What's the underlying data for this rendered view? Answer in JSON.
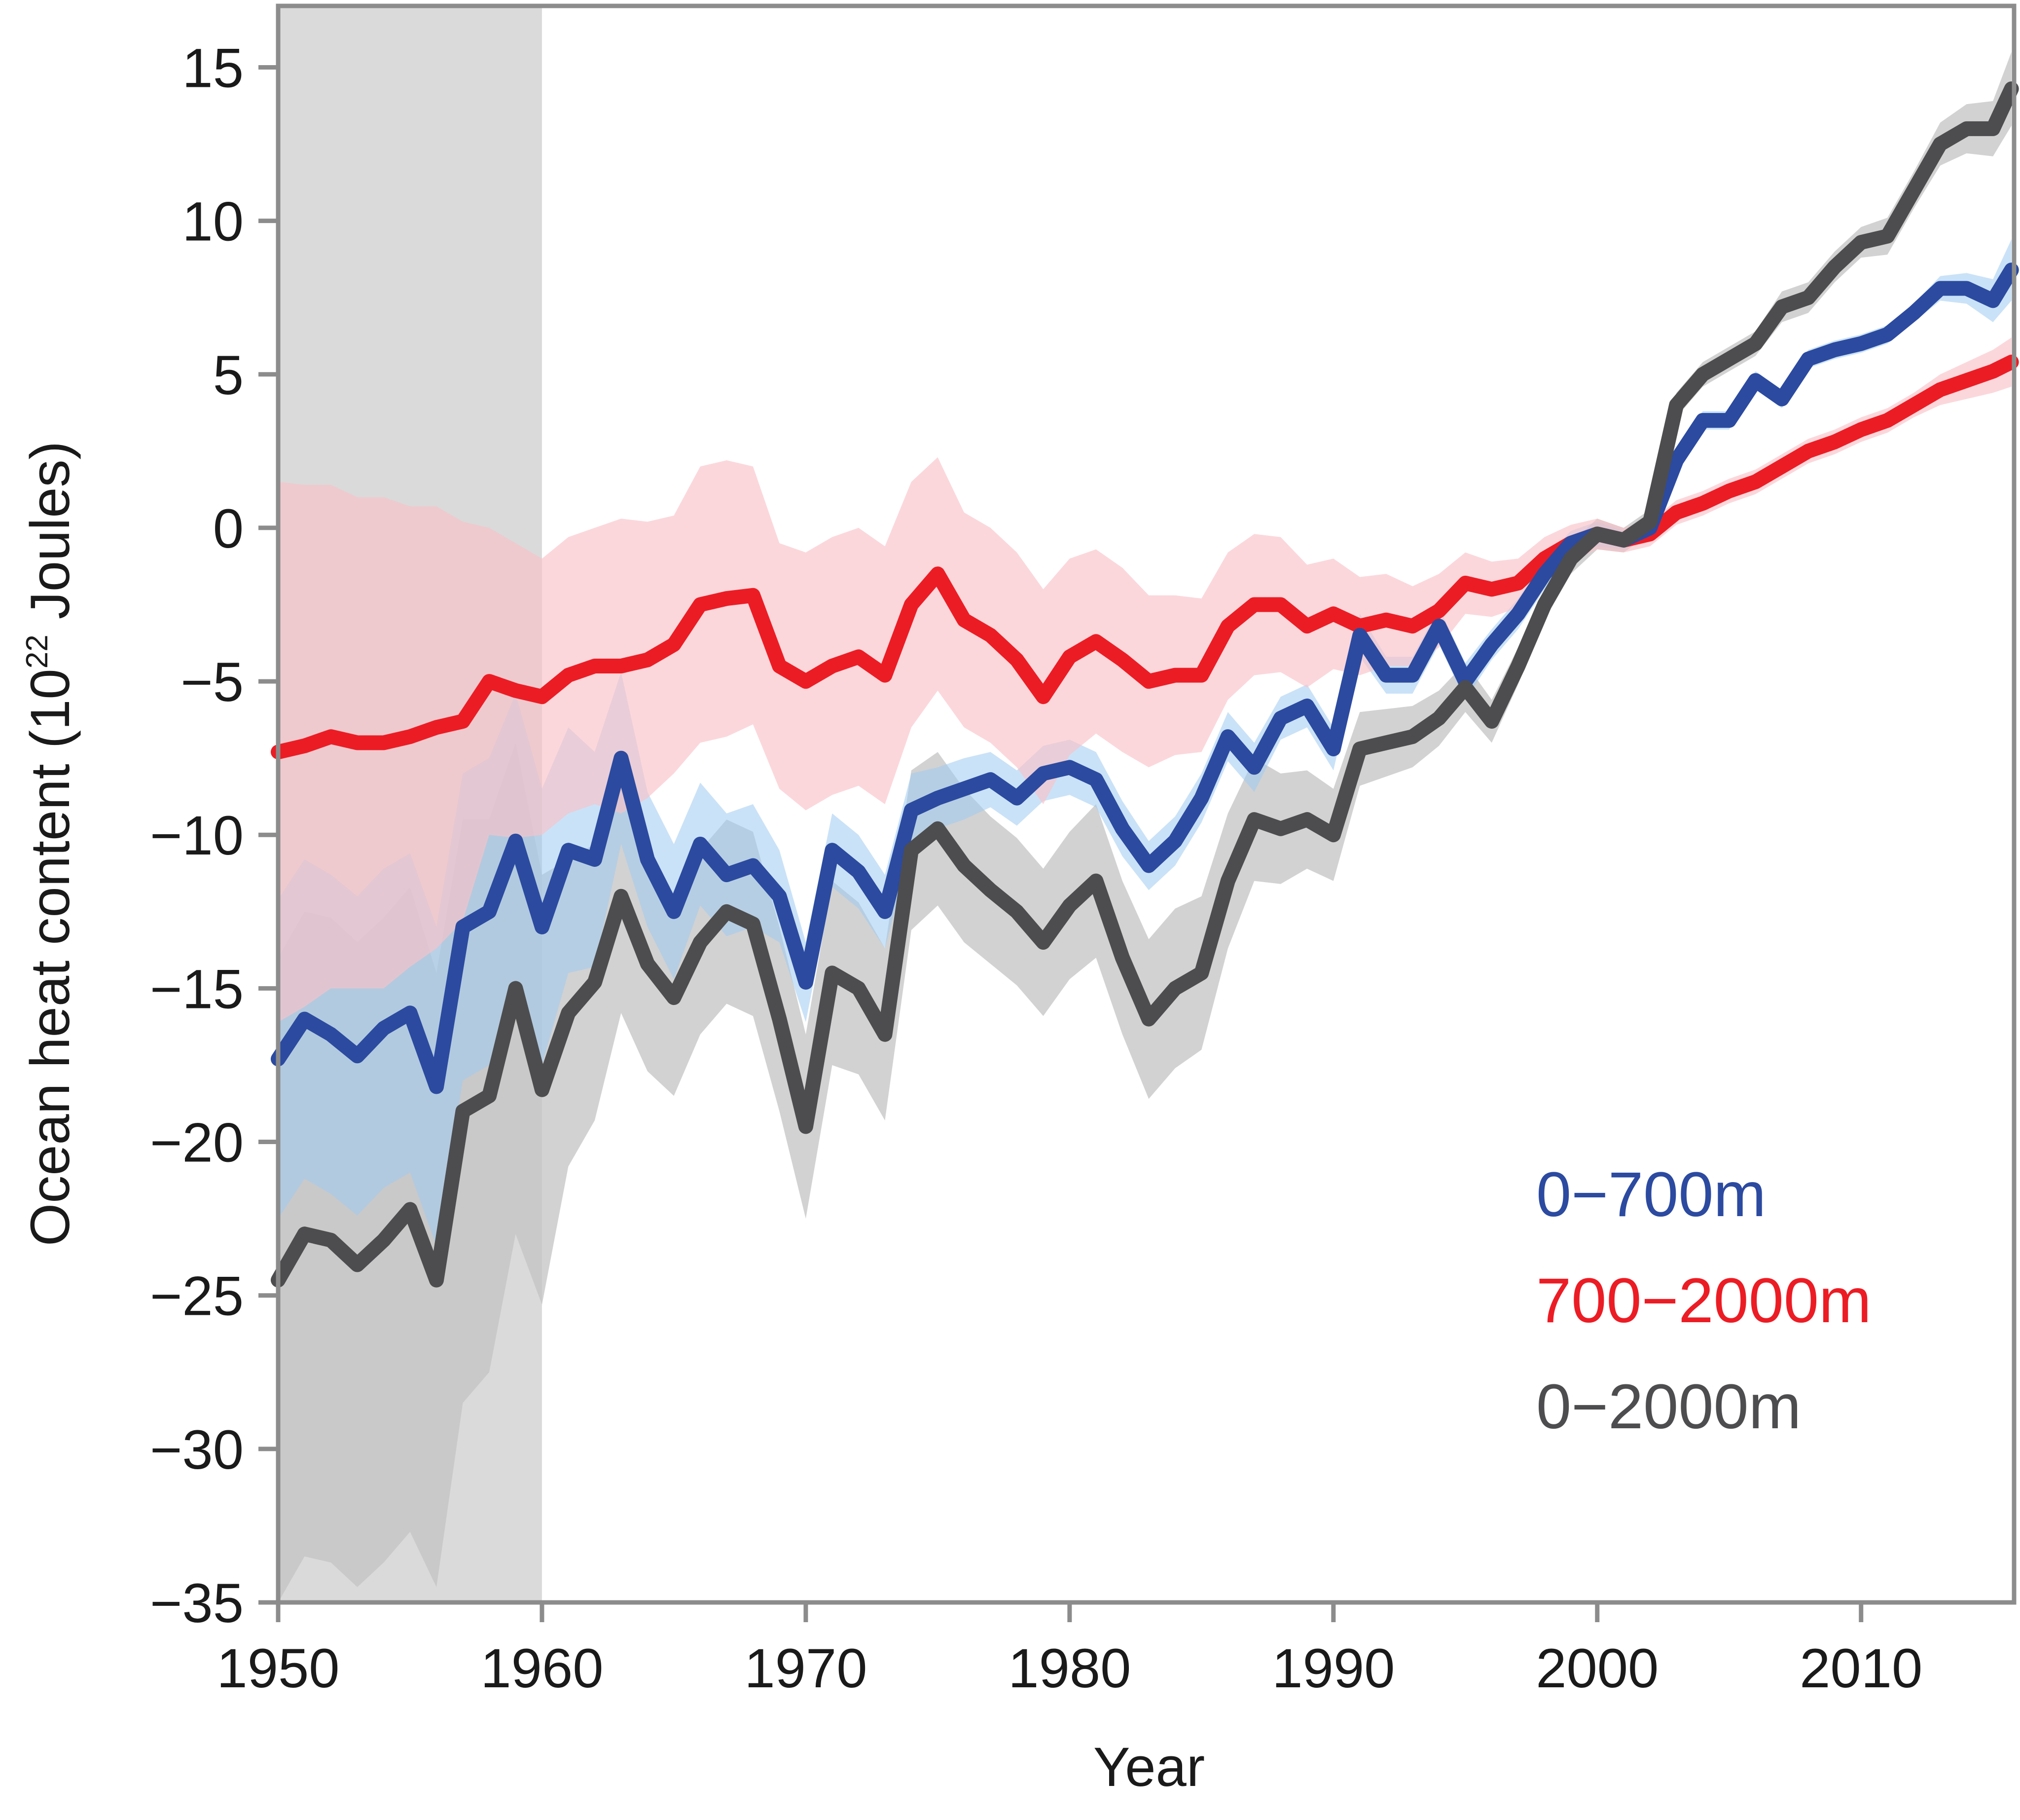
{
  "chart_data": {
    "type": "line",
    "xlabel": "Year",
    "ylabel_main": "Ocean heat content (10",
    "ylabel_sup": "22",
    "ylabel_tail": " Joules)",
    "xlim": [
      1950,
      2015.8
    ],
    "ylim": [
      -35,
      17
    ],
    "x_ticks": [
      1950,
      1960,
      1970,
      1980,
      1990,
      2000,
      2010
    ],
    "x_tick_labels": [
      "1950",
      "1960",
      "1970",
      "1980",
      "1990",
      "2000",
      "2010"
    ],
    "y_ticks": [
      -35,
      -30,
      -25,
      -20,
      -15,
      -10,
      -5,
      0,
      5,
      10,
      15
    ],
    "y_tick_labels": [
      "−35",
      "−30",
      "−25",
      "−20",
      "−15",
      "−10",
      "−5",
      "0",
      "5",
      "10",
      "15"
    ],
    "shaded_period": [
      1950,
      1960
    ],
    "grid": false,
    "legend_placement": "bottom-right",
    "series": [
      {
        "name": "0−700m",
        "color": "#2b4aa0",
        "band_color": "#9ecbf0",
        "x": [
          1950,
          1951,
          1952,
          1953,
          1954,
          1955,
          1956,
          1957,
          1958,
          1959,
          1960,
          1961,
          1962,
          1963,
          1964,
          1965,
          1966,
          1967,
          1968,
          1969,
          1970,
          1971,
          1972,
          1973,
          1974,
          1975,
          1976,
          1977,
          1978,
          1979,
          1980,
          1981,
          1982,
          1983,
          1984,
          1985,
          1986,
          1987,
          1988,
          1989,
          1990,
          1991,
          1992,
          1993,
          1994,
          1995,
          1996,
          1997,
          1998,
          1999,
          2000,
          2001,
          2002,
          2003,
          2004,
          2005,
          2006,
          2007,
          2008,
          2009,
          2010,
          2011,
          2012,
          2013,
          2014,
          2015,
          2015.7
        ],
        "y": [
          -17.3,
          -16,
          -16.5,
          -17.2,
          -16.3,
          -15.8,
          -18.2,
          -13,
          -12.5,
          -10.2,
          -13,
          -10.5,
          -10.8,
          -7.5,
          -10.8,
          -12.5,
          -10.3,
          -11.3,
          -11,
          -12,
          -14.8,
          -10.5,
          -11.2,
          -12.5,
          -9.2,
          -8.8,
          -8.5,
          -8.2,
          -8.8,
          -8,
          -7.8,
          -8.2,
          -9.8,
          -11,
          -10.2,
          -8.8,
          -6.8,
          -7.8,
          -6.2,
          -5.8,
          -7.2,
          -3.5,
          -4.8,
          -4.8,
          -3.2,
          -5,
          -3.8,
          -2.8,
          -1.5,
          -0.5,
          -0.2,
          -0.4,
          0,
          2.2,
          3.5,
          3.5,
          4.8,
          4.2,
          5.5,
          5.8,
          6,
          6.3,
          7,
          7.8,
          7.8,
          7.4,
          8.4
        ],
        "band_halfwidth": [
          5.2,
          5.2,
          5.2,
          5.2,
          5.2,
          5.2,
          5.2,
          5,
          5,
          4.8,
          4.5,
          4,
          3.5,
          2.8,
          2.2,
          2.2,
          2,
          2,
          2,
          1.5,
          1.3,
          1.2,
          1.2,
          1.2,
          1.2,
          1,
          1,
          0.9,
          0.9,
          0.9,
          0.9,
          0.9,
          0.9,
          0.8,
          0.8,
          0.8,
          0.8,
          0.8,
          0.7,
          0.7,
          0.7,
          0.7,
          0.6,
          0.6,
          0.6,
          0.6,
          0.5,
          0.5,
          0.5,
          0.4,
          0.4,
          0.3,
          0.3,
          0.3,
          0.3,
          0.3,
          0.3,
          0.3,
          0.3,
          0.3,
          0.3,
          0.3,
          0.3,
          0.4,
          0.5,
          0.7,
          1
        ]
      },
      {
        "name": "700−2000m",
        "color": "#ec1c24",
        "band_color": "#f9c2c7",
        "x": [
          1950,
          1951,
          1952,
          1953,
          1954,
          1955,
          1956,
          1957,
          1958,
          1959,
          1960,
          1961,
          1962,
          1963,
          1964,
          1965,
          1966,
          1967,
          1968,
          1969,
          1970,
          1971,
          1972,
          1973,
          1974,
          1975,
          1976,
          1977,
          1978,
          1979,
          1980,
          1981,
          1982,
          1983,
          1984,
          1985,
          1986,
          1987,
          1988,
          1989,
          1990,
          1991,
          1992,
          1993,
          1994,
          1995,
          1996,
          1997,
          1998,
          1999,
          2000,
          2001,
          2002,
          2003,
          2004,
          2005,
          2006,
          2007,
          2008,
          2009,
          2010,
          2011,
          2012,
          2013,
          2014,
          2015,
          2015.7
        ],
        "y": [
          -7.3,
          -7.1,
          -6.8,
          -7,
          -7,
          -6.8,
          -6.5,
          -6.3,
          -5,
          -5.3,
          -5.5,
          -4.8,
          -4.5,
          -4.5,
          -4.3,
          -3.8,
          -2.5,
          -2.3,
          -2.2,
          -4.5,
          -5,
          -4.5,
          -4.2,
          -4.8,
          -2.5,
          -1.5,
          -3,
          -3.5,
          -4.3,
          -5.5,
          -4.2,
          -3.7,
          -4.3,
          -5,
          -4.8,
          -4.8,
          -3.2,
          -2.5,
          -2.5,
          -3.2,
          -2.8,
          -3.2,
          -3,
          -3.2,
          -2.7,
          -1.8,
          -2,
          -1.8,
          -1,
          -0.5,
          -0.2,
          -0.4,
          -0.2,
          0.5,
          0.8,
          1.2,
          1.5,
          2,
          2.5,
          2.8,
          3.2,
          3.5,
          4,
          4.5,
          4.8,
          5.1,
          5.4
        ],
        "band_halfwidth": [
          8.8,
          8.5,
          8.2,
          8,
          8,
          7.5,
          7.2,
          6.5,
          5,
          4.8,
          4.5,
          4.5,
          4.5,
          4.8,
          4.5,
          4.2,
          4.5,
          4.5,
          4.2,
          4,
          4.2,
          4.2,
          4.2,
          4.2,
          4,
          3.8,
          3.5,
          3.5,
          3.5,
          3.5,
          3.2,
          3,
          3,
          2.8,
          2.6,
          2.5,
          2.4,
          2.3,
          2.2,
          2,
          1.8,
          1.6,
          1.5,
          1.3,
          1.2,
          1,
          0.9,
          0.8,
          0.7,
          0.6,
          0.5,
          0.4,
          0.4,
          0.4,
          0.4,
          0.4,
          0.4,
          0.4,
          0.4,
          0.4,
          0.4,
          0.4,
          0.4,
          0.5,
          0.6,
          0.7,
          0.8
        ]
      },
      {
        "name": "0−2000m",
        "color": "#4d4d4f",
        "band_color": "#c3c3c3",
        "x": [
          1950,
          1951,
          1952,
          1953,
          1954,
          1955,
          1956,
          1957,
          1958,
          1959,
          1960,
          1961,
          1962,
          1963,
          1964,
          1965,
          1966,
          1967,
          1968,
          1969,
          1970,
          1971,
          1972,
          1973,
          1974,
          1975,
          1976,
          1977,
          1978,
          1979,
          1980,
          1981,
          1982,
          1983,
          1984,
          1985,
          1986,
          1987,
          1988,
          1989,
          1990,
          1991,
          1992,
          1993,
          1994,
          1995,
          1996,
          1997,
          1998,
          1999,
          2000,
          2001,
          2002,
          2003,
          2004,
          2005,
          2006,
          2007,
          2008,
          2009,
          2010,
          2011,
          2012,
          2013,
          2014,
          2015,
          2015.7
        ],
        "y": [
          -24.5,
          -23,
          -23.2,
          -24,
          -23.2,
          -22.2,
          -24.5,
          -19,
          -18.5,
          -15,
          -18.3,
          -15.8,
          -14.8,
          -12,
          -14.2,
          -15.3,
          -13.5,
          -12.5,
          -12.9,
          -16,
          -19.5,
          -14.5,
          -15,
          -16.5,
          -10.5,
          -9.8,
          -11,
          -11.8,
          -12.5,
          -13.5,
          -12.3,
          -11.5,
          -14,
          -16,
          -15,
          -14.5,
          -11.5,
          -9.5,
          -9.8,
          -9.5,
          -10,
          -7.2,
          -7,
          -6.8,
          -6.2,
          -5.2,
          -6.3,
          -4.5,
          -2.5,
          -1,
          -0.2,
          -0.4,
          0.2,
          4,
          5,
          5.5,
          6,
          7.2,
          7.5,
          8.5,
          9.3,
          9.5,
          11,
          12.5,
          13,
          13,
          14.3
        ],
        "band_halfwidth": [
          10.5,
          10.5,
          10.5,
          10.5,
          10.5,
          10.5,
          10,
          9.5,
          9,
          8,
          7,
          5,
          4.5,
          3.8,
          3.5,
          3.2,
          3,
          3,
          3,
          3,
          3,
          3,
          2.8,
          2.8,
          2.6,
          2.5,
          2.5,
          2.4,
          2.4,
          2.4,
          2.4,
          2.5,
          2.5,
          2.6,
          2.6,
          2.5,
          2.2,
          2,
          1.8,
          1.6,
          1.5,
          1.2,
          1.1,
          1,
          0.9,
          0.8,
          0.7,
          0.6,
          0.5,
          0.5,
          0.5,
          0.4,
          0.4,
          0.4,
          0.4,
          0.4,
          0.4,
          0.5,
          0.5,
          0.5,
          0.5,
          0.6,
          0.6,
          0.7,
          0.8,
          0.9,
          1.2
        ]
      }
    ]
  }
}
